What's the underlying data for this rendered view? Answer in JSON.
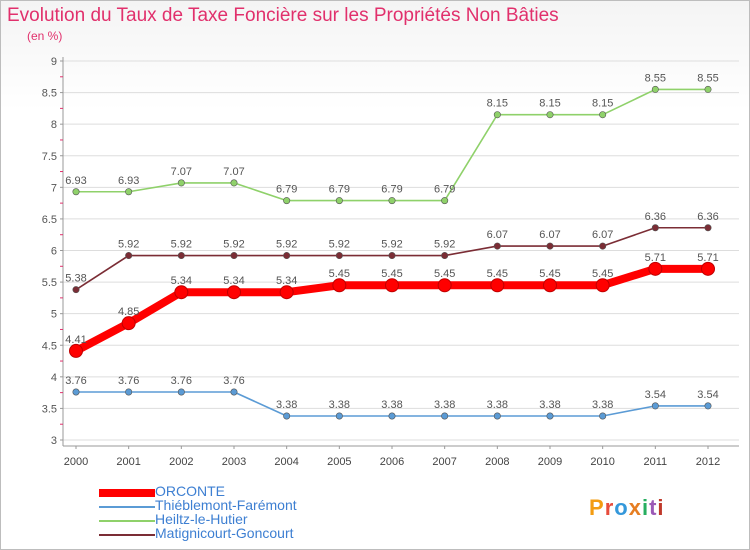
{
  "title": "Evolution du Taux de Taxe Foncière sur les Propriétés Non Bâties",
  "subtitle": "(en %)",
  "logo": {
    "text": "Proxiti",
    "letter_colors": [
      "#f39c12",
      "#e74c3c",
      "#3498db",
      "#e67e22",
      "#27ae60",
      "#9b59b6",
      "#c0392b"
    ]
  },
  "chart_data": {
    "type": "line",
    "x": [
      "2000",
      "2001",
      "2002",
      "2003",
      "2004",
      "2005",
      "2006",
      "2007",
      "2008",
      "2009",
      "2010",
      "2011",
      "2012"
    ],
    "ylim": [
      3,
      9
    ],
    "yticks": [
      "3",
      "3.5",
      "4",
      "4.5",
      "5",
      "5.5",
      "6",
      "6.5",
      "7",
      "7.5",
      "8",
      "8.5",
      "9"
    ],
    "grid": "horizontal",
    "legend_position": "bottom",
    "series": [
      {
        "name": "ORCONTE",
        "color": "#ff0000",
        "emphasis": true,
        "values": [
          4.41,
          4.85,
          5.34,
          5.34,
          5.34,
          5.45,
          5.45,
          5.45,
          5.45,
          5.45,
          5.45,
          5.71,
          5.71
        ],
        "labels": [
          "4.41",
          "4.85",
          "5.34",
          "5.34",
          "5.34",
          "5.45",
          "5.45",
          "5.45",
          "5.45",
          "5.45",
          "5.45",
          "5.71",
          "5.71"
        ]
      },
      {
        "name": "Thiéblemont-Farémont",
        "color": "#5b9bd5",
        "emphasis": false,
        "values": [
          3.76,
          3.76,
          3.76,
          3.76,
          3.38,
          3.38,
          3.38,
          3.38,
          3.38,
          3.38,
          3.38,
          3.54,
          3.54
        ],
        "labels": [
          "3.76",
          "3.76",
          "3.76",
          "3.76",
          "3.38",
          "3.38",
          "3.38",
          "3.38",
          "3.38",
          "3.38",
          "3.38",
          "3.54",
          "3.54"
        ]
      },
      {
        "name": "Heiltz-le-Hutier",
        "color": "#8fd16a",
        "emphasis": false,
        "values": [
          6.93,
          6.93,
          7.07,
          7.07,
          6.79,
          6.79,
          6.79,
          6.79,
          8.15,
          8.15,
          8.15,
          8.55,
          8.55
        ],
        "labels": [
          "6.93",
          "6.93",
          "7.07",
          "7.07",
          "6.79",
          "6.79",
          "6.79",
          "6.79",
          "8.15",
          "8.15",
          "8.15",
          "8.55",
          "8.55"
        ]
      },
      {
        "name": "Matignicourt-Goncourt",
        "color": "#7b2d35",
        "emphasis": false,
        "values": [
          5.38,
          5.92,
          5.92,
          5.92,
          5.92,
          5.92,
          5.92,
          5.92,
          6.07,
          6.07,
          6.07,
          6.36,
          6.36
        ],
        "labels": [
          "5.38",
          "5.92",
          "5.92",
          "5.92",
          "5.92",
          "5.92",
          "5.92",
          "5.92",
          "6.07",
          "6.07",
          "6.07",
          "6.36",
          "6.36"
        ]
      }
    ]
  }
}
